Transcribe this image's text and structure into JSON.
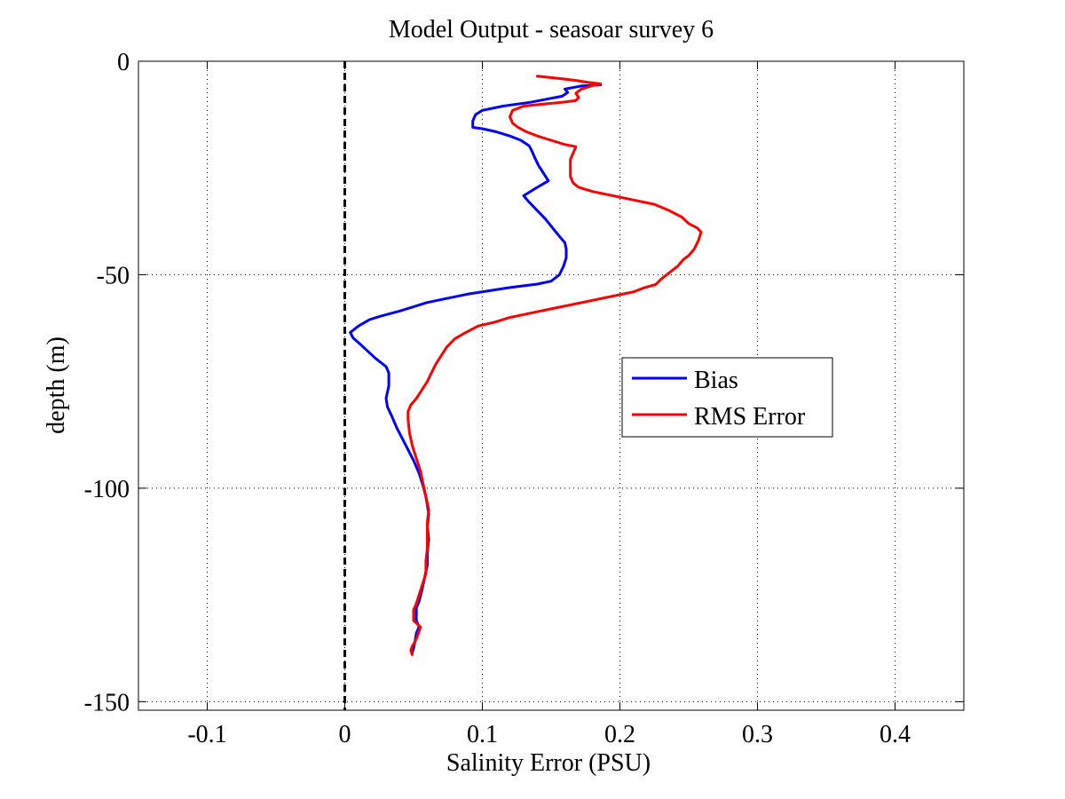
{
  "chart_data": {
    "type": "line",
    "title": "Model Output - seasoar survey 6",
    "xlabel": "Salinity Error  (PSU)",
    "ylabel": "depth (m)",
    "xlim": [
      -0.15,
      0.45
    ],
    "ylim": [
      -152,
      0
    ],
    "xticks": [
      -0.1,
      0,
      0.1,
      0.2,
      0.3,
      0.4
    ],
    "xtick_labels": [
      "-0.1",
      "0",
      "0.1",
      "0.2",
      "0.3",
      "0.4"
    ],
    "yticks": [
      0,
      -50,
      -100,
      -150
    ],
    "ytick_labels": [
      "0",
      "-50",
      "-100",
      "-150"
    ],
    "grid": true,
    "legend_position": "right",
    "reference_line": {
      "x": 0,
      "style": "dashed",
      "color": "#000000"
    },
    "series": [
      {
        "name": "Bias",
        "color": "#0000ff",
        "points": [
          [
            0.186,
            -5.5
          ],
          [
            0.172,
            -5.8
          ],
          [
            0.16,
            -6.5
          ],
          [
            0.162,
            -7.3
          ],
          [
            0.158,
            -8.2
          ],
          [
            0.148,
            -8.8
          ],
          [
            0.135,
            -9.6
          ],
          [
            0.115,
            -10.5
          ],
          [
            0.1,
            -11.5
          ],
          [
            0.095,
            -12.5
          ],
          [
            0.093,
            -14.0
          ],
          [
            0.093,
            -15.5
          ],
          [
            0.1,
            -15.8
          ],
          [
            0.11,
            -16.5
          ],
          [
            0.12,
            -17.5
          ],
          [
            0.128,
            -18.5
          ],
          [
            0.134,
            -19.8
          ],
          [
            0.136,
            -21.0
          ],
          [
            0.138,
            -22.5
          ],
          [
            0.141,
            -24.5
          ],
          [
            0.144,
            -26.0
          ],
          [
            0.147,
            -27.5
          ],
          [
            0.148,
            -28.0
          ],
          [
            0.14,
            -29.5
          ],
          [
            0.13,
            -31.5
          ],
          [
            0.134,
            -33.0
          ],
          [
            0.14,
            -35.0
          ],
          [
            0.146,
            -37.0
          ],
          [
            0.151,
            -39.0
          ],
          [
            0.156,
            -41.0
          ],
          [
            0.16,
            -42.5
          ],
          [
            0.161,
            -44.0
          ],
          [
            0.161,
            -46.0
          ],
          [
            0.159,
            -48.0
          ],
          [
            0.156,
            -50.0
          ],
          [
            0.15,
            -51.5
          ],
          [
            0.14,
            -52.2
          ],
          [
            0.12,
            -53.0
          ],
          [
            0.09,
            -54.5
          ],
          [
            0.06,
            -56.5
          ],
          [
            0.04,
            -58.5
          ],
          [
            0.025,
            -59.8
          ],
          [
            0.018,
            -60.5
          ],
          [
            0.01,
            -62.0
          ],
          [
            0.004,
            -63.5
          ],
          [
            0.006,
            -64.8
          ],
          [
            0.012,
            -66.5
          ],
          [
            0.022,
            -69.5
          ],
          [
            0.03,
            -71.5
          ],
          [
            0.032,
            -73.0
          ],
          [
            0.032,
            -76.0
          ],
          [
            0.03,
            -79.0
          ],
          [
            0.031,
            -81.0
          ],
          [
            0.034,
            -83.0
          ],
          [
            0.038,
            -86.0
          ],
          [
            0.042,
            -88.5
          ],
          [
            0.046,
            -91.0
          ],
          [
            0.05,
            -93.5
          ],
          [
            0.054,
            -96.5
          ],
          [
            0.057,
            -99.5
          ],
          [
            0.059,
            -102.0
          ],
          [
            0.06,
            -104.0
          ],
          [
            0.061,
            -106.0
          ],
          [
            0.06,
            -109.0
          ],
          [
            0.061,
            -112.0
          ],
          [
            0.06,
            -115.0
          ],
          [
            0.06,
            -118.0
          ],
          [
            0.058,
            -121.0
          ],
          [
            0.056,
            -124.0
          ],
          [
            0.054,
            -126.5
          ],
          [
            0.052,
            -128.0
          ],
          [
            0.052,
            -131.0
          ],
          [
            0.054,
            -132.5
          ],
          [
            0.052,
            -134.0
          ],
          [
            0.051,
            -136.0
          ],
          [
            0.05,
            -137.5
          ],
          [
            0.049,
            -138.5
          ]
        ]
      },
      {
        "name": "RMS Error",
        "color": "#ff0000",
        "points": [
          [
            0.14,
            -3.5
          ],
          [
            0.155,
            -4.0
          ],
          [
            0.168,
            -4.5
          ],
          [
            0.178,
            -5.0
          ],
          [
            0.186,
            -5.3
          ],
          [
            0.18,
            -5.7
          ],
          [
            0.172,
            -6.5
          ],
          [
            0.168,
            -7.5
          ],
          [
            0.17,
            -8.5
          ],
          [
            0.168,
            -9.2
          ],
          [
            0.158,
            -9.6
          ],
          [
            0.145,
            -10.0
          ],
          [
            0.13,
            -10.5
          ],
          [
            0.122,
            -11.5
          ],
          [
            0.12,
            -13.0
          ],
          [
            0.122,
            -14.5
          ],
          [
            0.126,
            -15.5
          ],
          [
            0.132,
            -16.5
          ],
          [
            0.14,
            -17.5
          ],
          [
            0.15,
            -18.5
          ],
          [
            0.16,
            -19.5
          ],
          [
            0.168,
            -20.0
          ],
          [
            0.166,
            -21.5
          ],
          [
            0.164,
            -23.0
          ],
          [
            0.164,
            -25.0
          ],
          [
            0.164,
            -27.0
          ],
          [
            0.166,
            -28.5
          ],
          [
            0.17,
            -29.5
          ],
          [
            0.18,
            -30.5
          ],
          [
            0.195,
            -31.5
          ],
          [
            0.21,
            -32.5
          ],
          [
            0.225,
            -33.5
          ],
          [
            0.236,
            -35.0
          ],
          [
            0.245,
            -36.5
          ],
          [
            0.25,
            -38.0
          ],
          [
            0.256,
            -39.0
          ],
          [
            0.259,
            -40.0
          ],
          [
            0.257,
            -42.0
          ],
          [
            0.254,
            -44.0
          ],
          [
            0.25,
            -45.5
          ],
          [
            0.246,
            -46.5
          ],
          [
            0.242,
            -48.0
          ],
          [
            0.236,
            -49.5
          ],
          [
            0.23,
            -51.0
          ],
          [
            0.226,
            -52.3
          ],
          [
            0.218,
            -53.0
          ],
          [
            0.21,
            -54.0
          ],
          [
            0.195,
            -55.0
          ],
          [
            0.18,
            -56.0
          ],
          [
            0.165,
            -57.0
          ],
          [
            0.15,
            -58.0
          ],
          [
            0.135,
            -59.0
          ],
          [
            0.12,
            -60.0
          ],
          [
            0.11,
            -61.0
          ],
          [
            0.097,
            -62.0
          ],
          [
            0.088,
            -63.5
          ],
          [
            0.08,
            -65.0
          ],
          [
            0.074,
            -67.0
          ],
          [
            0.07,
            -69.0
          ],
          [
            0.066,
            -71.0
          ],
          [
            0.063,
            -73.0
          ],
          [
            0.06,
            -75.0
          ],
          [
            0.056,
            -77.0
          ],
          [
            0.052,
            -79.0
          ],
          [
            0.048,
            -80.5
          ],
          [
            0.046,
            -82.0
          ],
          [
            0.046,
            -84.0
          ],
          [
            0.047,
            -87.0
          ],
          [
            0.049,
            -90.0
          ],
          [
            0.052,
            -93.0
          ],
          [
            0.055,
            -96.0
          ],
          [
            0.057,
            -99.0
          ],
          [
            0.059,
            -102.0
          ],
          [
            0.061,
            -105.0
          ],
          [
            0.06,
            -108.0
          ],
          [
            0.06,
            -111.0
          ],
          [
            0.06,
            -114.0
          ],
          [
            0.059,
            -117.0
          ],
          [
            0.059,
            -120.0
          ],
          [
            0.056,
            -123.0
          ],
          [
            0.054,
            -125.0
          ],
          [
            0.052,
            -127.0
          ],
          [
            0.05,
            -128.5
          ],
          [
            0.05,
            -131.0
          ],
          [
            0.055,
            -132.5
          ],
          [
            0.053,
            -134.5
          ],
          [
            0.051,
            -136.0
          ],
          [
            0.049,
            -137.0
          ],
          [
            0.048,
            -138.0
          ],
          [
            0.049,
            -139.0
          ]
        ]
      }
    ]
  }
}
